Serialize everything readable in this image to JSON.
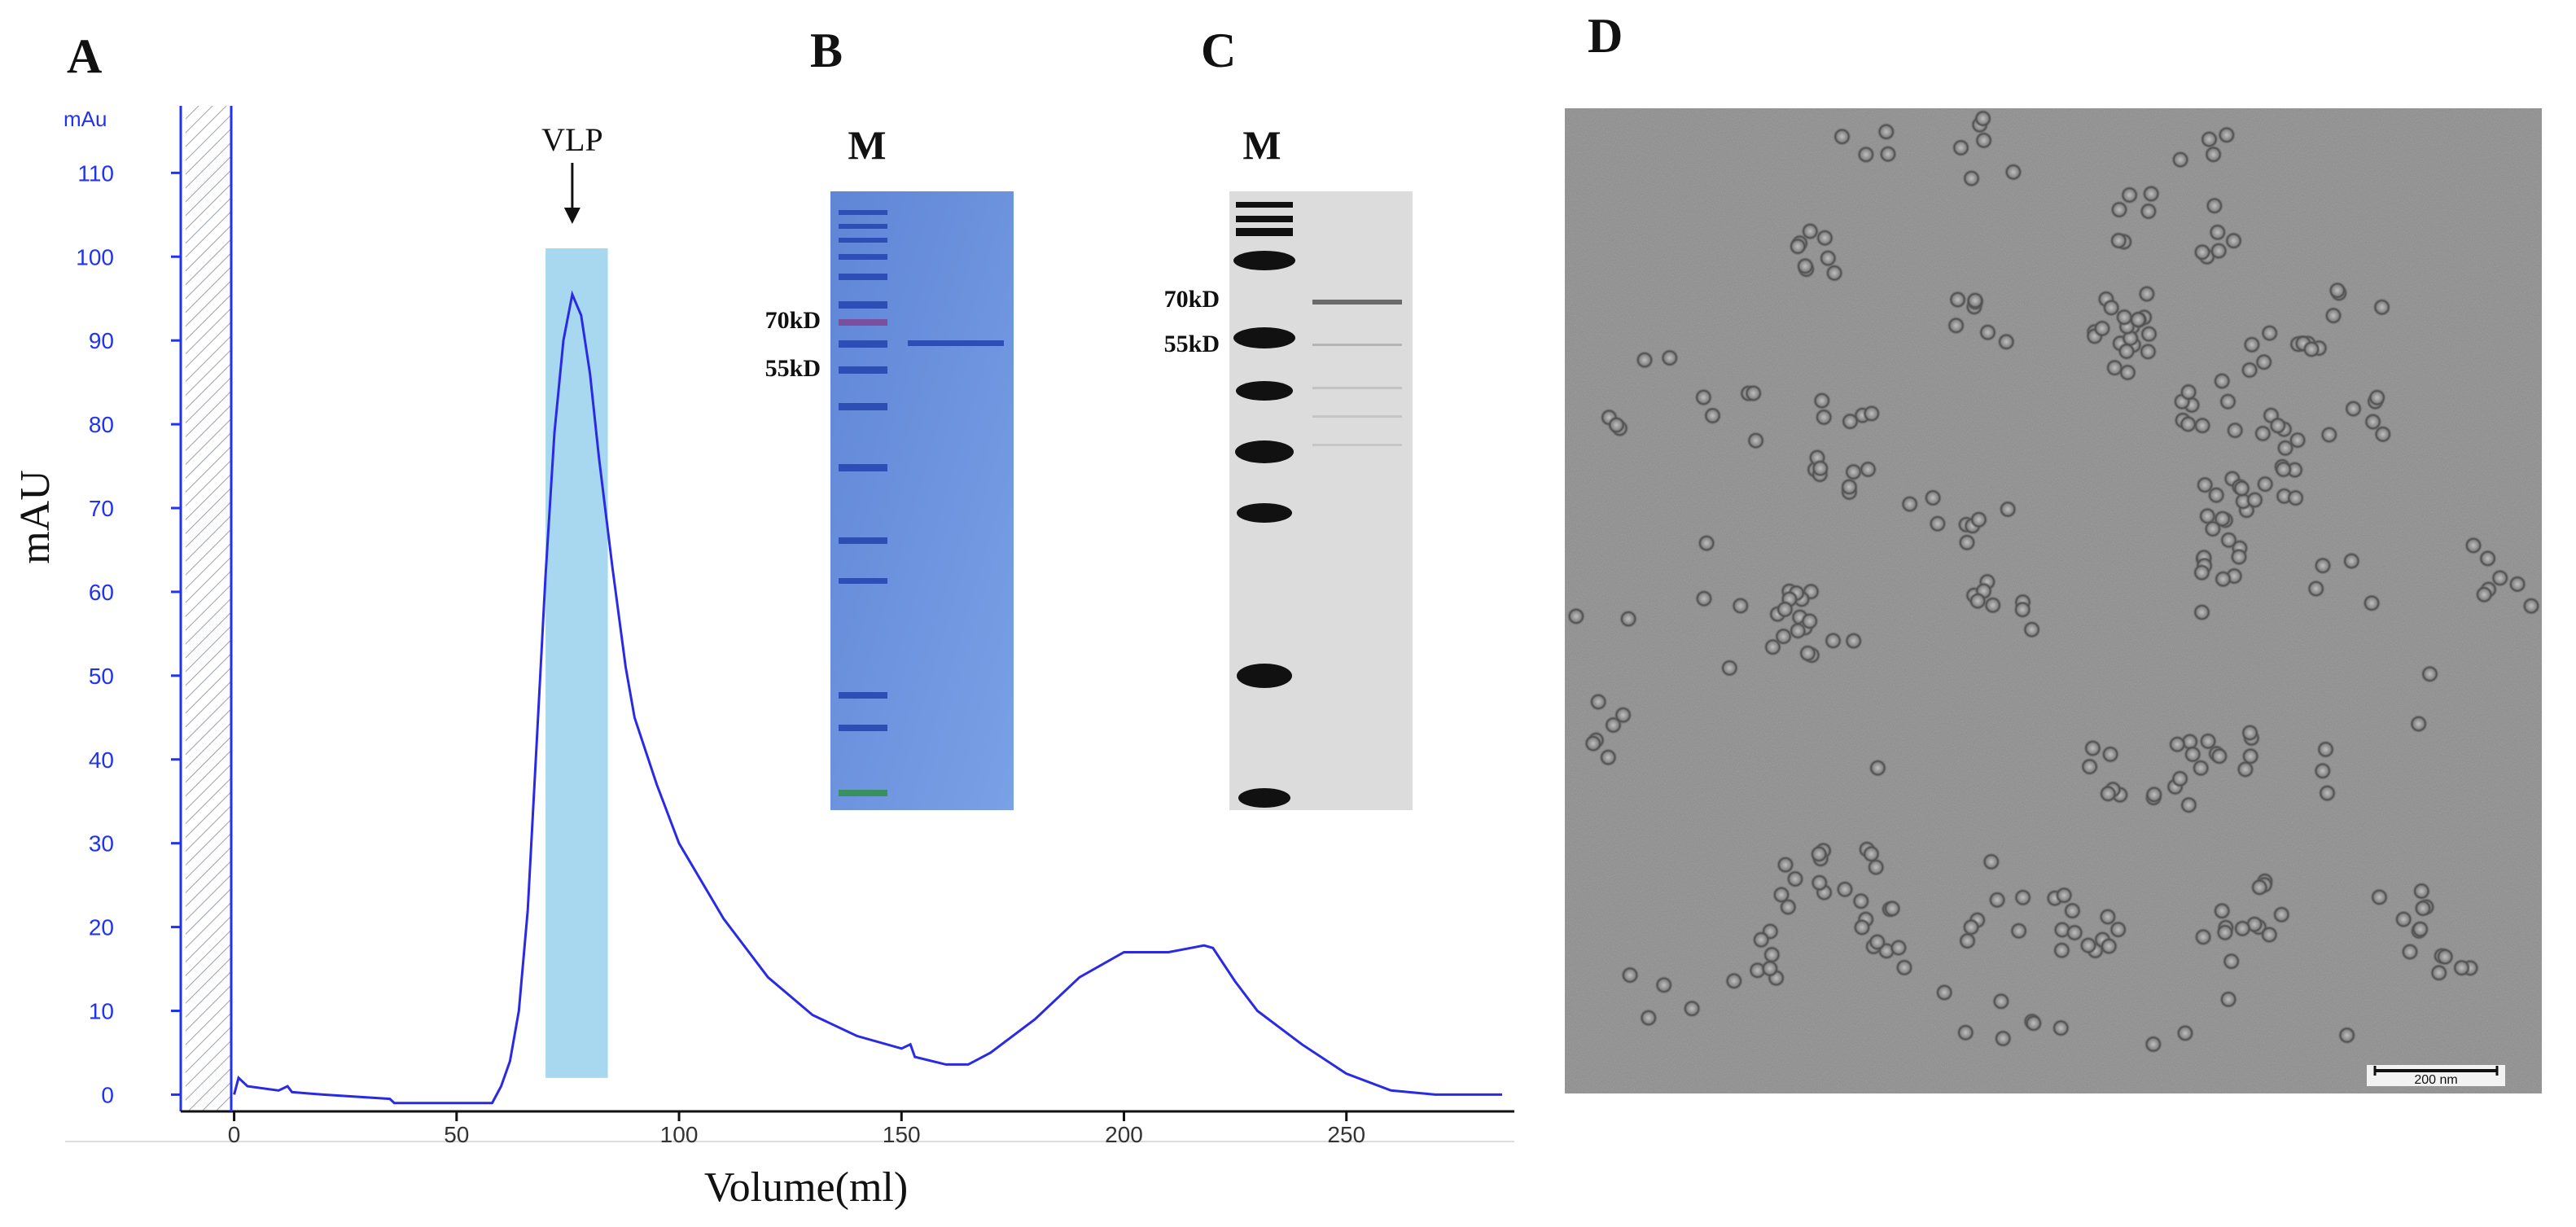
{
  "panels": {
    "a": "A",
    "b": "B",
    "c": "C",
    "d": "D"
  },
  "chart_data": {
    "type": "line",
    "xlabel": "Volume(ml)",
    "ylabel": "mAU",
    "y_unit_label": "mAu",
    "xlim": [
      -12,
      285
    ],
    "ylim": [
      -2,
      118
    ],
    "x_ticks": [
      0,
      50,
      100,
      150,
      200,
      250
    ],
    "y_ticks": [
      0,
      10,
      20,
      30,
      40,
      50,
      60,
      70,
      80,
      90,
      100,
      110
    ],
    "line_color": "#2a2ae6",
    "annotation": {
      "text": "VLP",
      "x": 76
    },
    "highlight": {
      "x_start": 70,
      "x_end": 84,
      "y_top": 101,
      "color": "#a8d8ef"
    },
    "x": [
      0,
      1,
      3,
      10,
      12,
      13,
      20,
      35,
      36,
      50,
      58,
      60,
      62,
      64,
      66,
      68,
      70,
      72,
      74,
      76,
      78,
      80,
      82,
      85,
      88,
      90,
      95,
      100,
      110,
      120,
      130,
      140,
      150,
      152,
      153,
      160,
      165,
      170,
      180,
      190,
      200,
      210,
      215,
      218,
      220,
      225,
      230,
      240,
      250,
      260,
      270,
      285
    ],
    "y": [
      0,
      2,
      1,
      0.5,
      1,
      0.3,
      0,
      -0.5,
      -1,
      -1,
      -1,
      1,
      4,
      10,
      22,
      42,
      62,
      79,
      90,
      95.5,
      93,
      86,
      76,
      63,
      51,
      45,
      37,
      30,
      21,
      14,
      9.5,
      7,
      5.5,
      6,
      4.5,
      3.6,
      3.6,
      5,
      9,
      14,
      17,
      17,
      17.5,
      17.8,
      17.5,
      13.5,
      10,
      6,
      2.5,
      0.5,
      0,
      0
    ]
  },
  "gel_b": {
    "lane_m": "M",
    "marker_70": "70kD",
    "marker_55": "55kD"
  },
  "gel_c": {
    "lane_m": "M",
    "marker_70": "70kD",
    "marker_55": "55kD"
  },
  "em": {
    "scale_text": "200 nm"
  }
}
